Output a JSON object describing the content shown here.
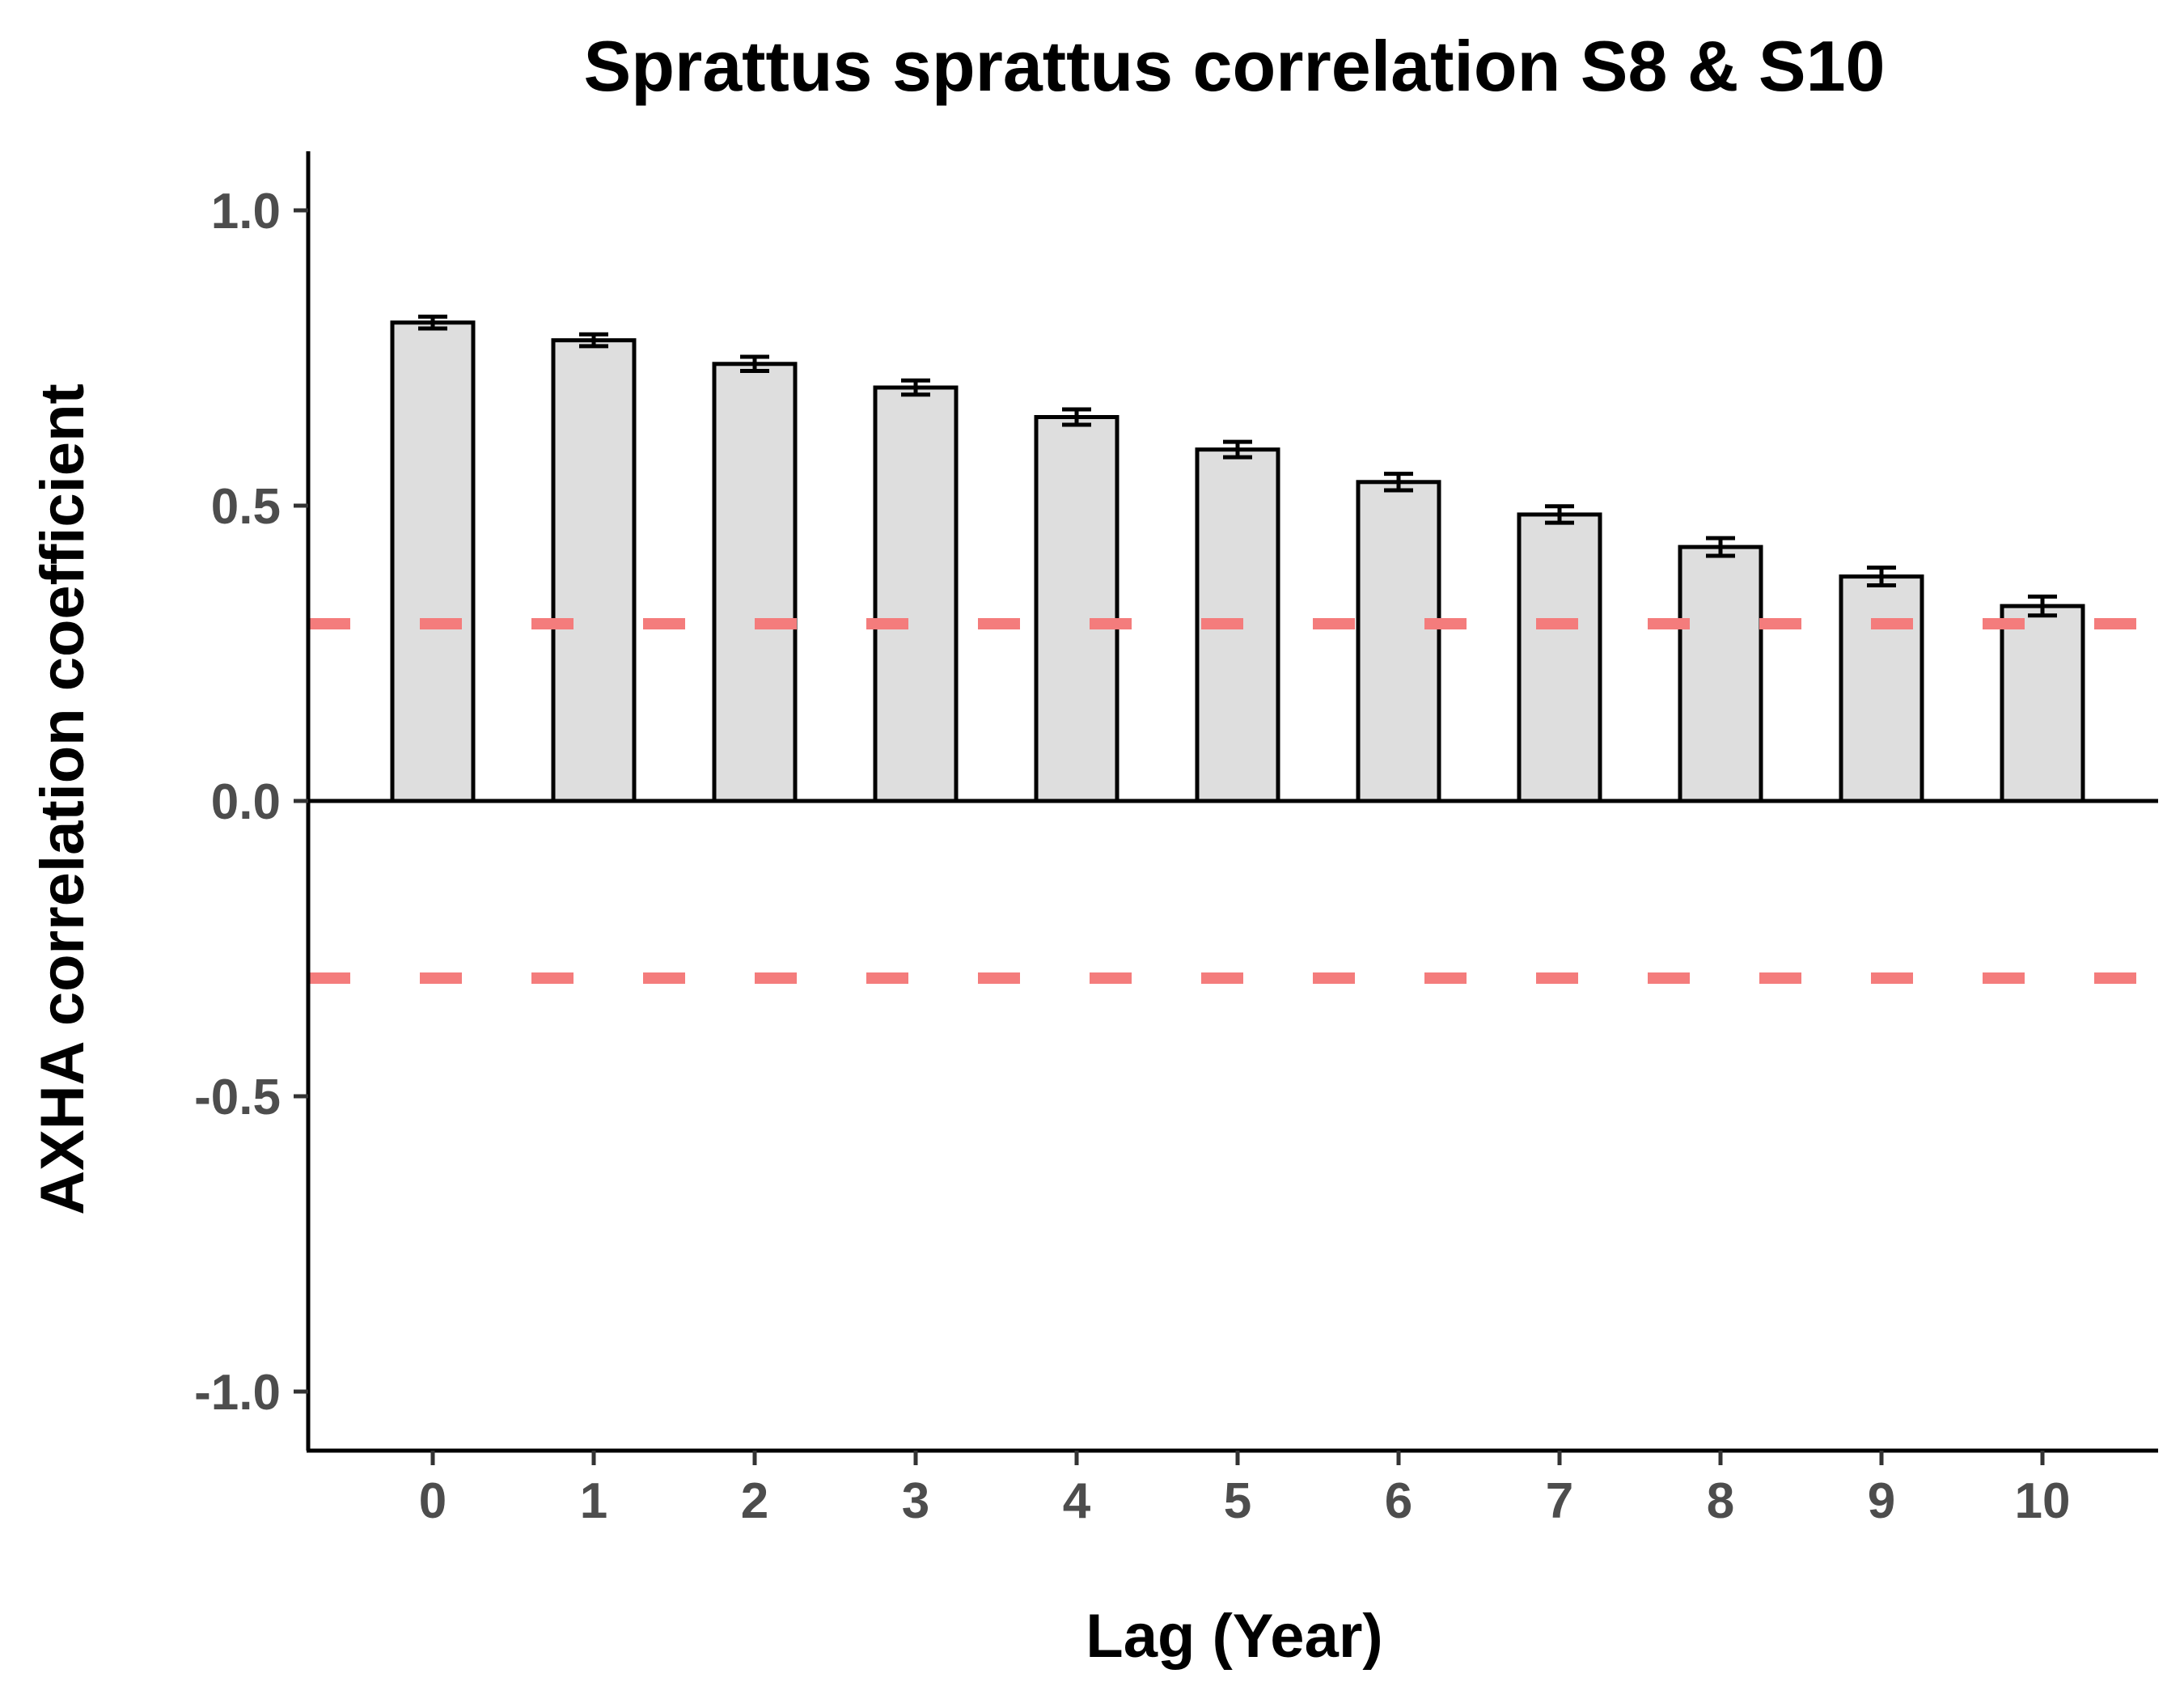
{
  "chart_data": {
    "type": "bar",
    "title": "Sprattus sprattus correlation S8 & S10",
    "xlabel": "Lag (Year)",
    "ylabel": "AXHA correlation coefficient",
    "categories": [
      "0",
      "1",
      "2",
      "3",
      "4",
      "5",
      "6",
      "7",
      "8",
      "9",
      "10"
    ],
    "series": [
      {
        "values": [
          0.81,
          0.78,
          0.74,
          0.7,
          0.65,
          0.595,
          0.54,
          0.485,
          0.43,
          0.38,
          0.33
        ],
        "error": [
          0.01,
          0.01,
          0.012,
          0.012,
          0.013,
          0.013,
          0.014,
          0.014,
          0.015,
          0.015,
          0.016
        ]
      }
    ],
    "ylim": [
      -1.1,
      1.1
    ],
    "yticks": [
      "1.0",
      "0.5",
      "0.0",
      "-0.5",
      "-1.0"
    ],
    "ytick_values": [
      1.0,
      0.5,
      0.0,
      -0.5,
      -1.0
    ],
    "reference_lines": [
      0.3,
      -0.3
    ],
    "grid": false,
    "colors": {
      "bar_fill": "#dedede",
      "bar_stroke": "#000000",
      "reference_line": "#f47c7c",
      "tick_label": "#4d4d4d"
    }
  }
}
